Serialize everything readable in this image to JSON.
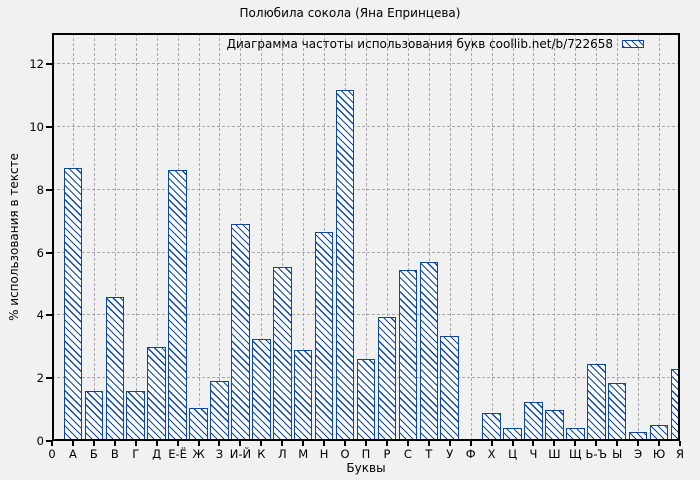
{
  "title": "Полюбила сокола (Яна Епринцева)",
  "colors": {
    "bar_outline": "#0d47a1",
    "bar_fill": "#ffffff",
    "grid": "#a8a8a8",
    "background": "#f1f1f1",
    "axis": "#000000"
  },
  "chart_data": {
    "type": "bar",
    "title": "Полюбила сокола (Яна Епринцева)",
    "legend": "Диаграмма частоты использования букв coollib.net/b/722658",
    "legend_position": "top-right",
    "xlabel": "Буквы",
    "ylabel": "% использования в тексте",
    "origin_label": "0",
    "ylim": [
      0,
      13
    ],
    "yticks": [
      0,
      2,
      4,
      6,
      8,
      10,
      12
    ],
    "grid": true,
    "hatch": "diagonal",
    "categories": [
      "А",
      "Б",
      "В",
      "Г",
      "Д",
      "Е-Ё",
      "Ж",
      "З",
      "И-Й",
      "К",
      "Л",
      "М",
      "Н",
      "О",
      "П",
      "Р",
      "С",
      "Т",
      "У",
      "Ф",
      "Х",
      "Ц",
      "Ч",
      "Ш",
      "Щ",
      "Ь-Ъ",
      "Ы",
      "Э",
      "Ю",
      "Я"
    ],
    "values": [
      8.7,
      1.6,
      4.6,
      1.6,
      3.0,
      8.65,
      1.05,
      1.9,
      6.9,
      3.25,
      5.55,
      2.9,
      6.65,
      11.2,
      2.6,
      3.95,
      5.45,
      5.7,
      3.35,
      0.07,
      0.9,
      0.4,
      1.25,
      1.0,
      0.4,
      2.45,
      1.85,
      0.3,
      0.5,
      2.3
    ]
  }
}
